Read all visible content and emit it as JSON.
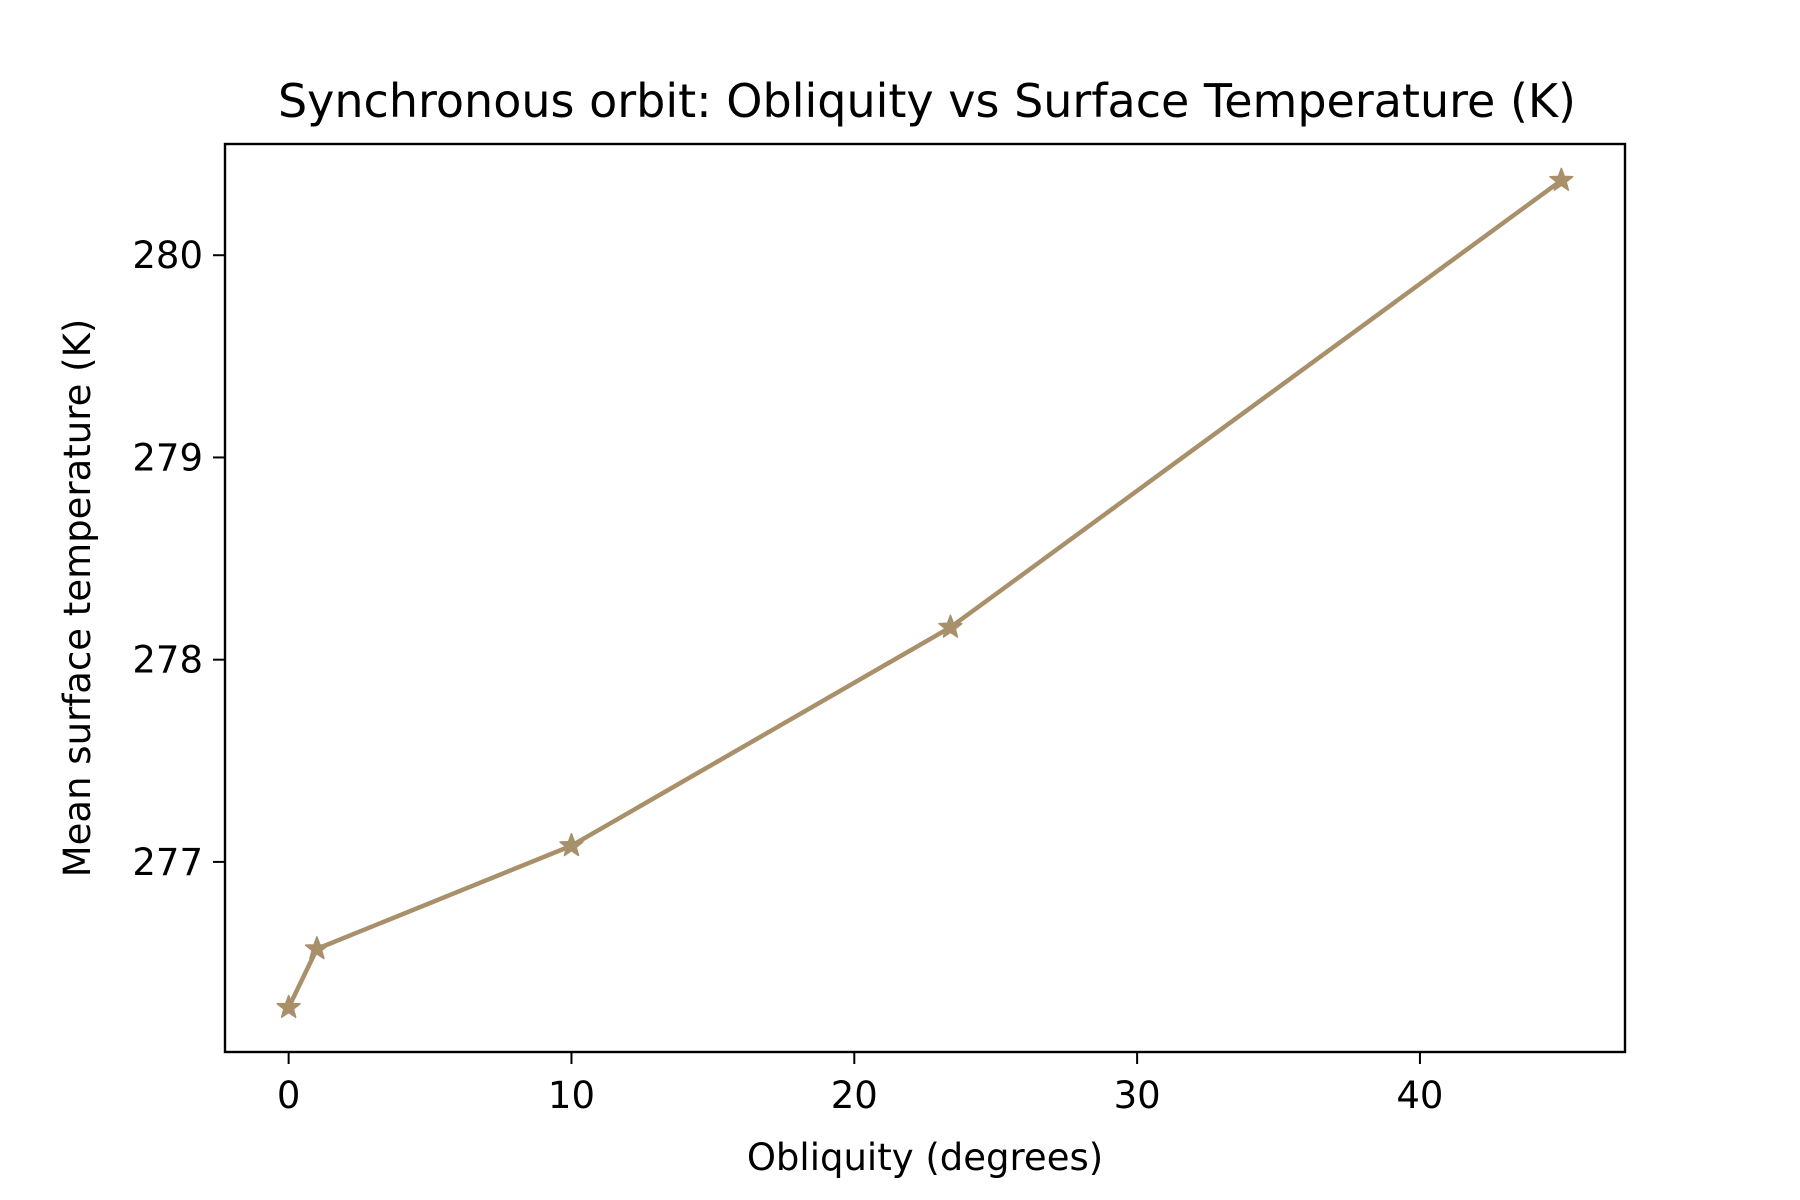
{
  "chart_data": {
    "type": "line",
    "title": "Synchronous orbit: Obliquity vs Surface Temperature (K)",
    "xlabel": "Obliquity (degrees)",
    "ylabel": "Mean surface temperature (K)",
    "xlim": [
      -2.25,
      47.25
    ],
    "ylim": [
      276.06,
      280.55
    ],
    "xticks": [
      0,
      10,
      20,
      30,
      40
    ],
    "yticks": [
      277,
      278,
      279,
      280
    ],
    "grid": false,
    "legend": "none",
    "series": [
      {
        "color": "#a8916a",
        "marker": "star",
        "x": [
          0,
          1,
          10,
          23.4,
          45
        ],
        "y": [
          276.28,
          276.57,
          277.08,
          278.16,
          280.37
        ]
      }
    ]
  }
}
